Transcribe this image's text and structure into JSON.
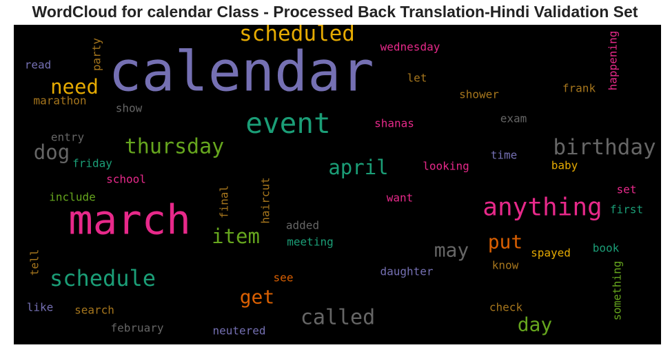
{
  "title": "WordCloud for calendar Class - Processed Back Translation-Hindi Validation Set",
  "chart_data": {
    "type": "wordcloud",
    "title": "WordCloud for calendar Class - Processed Back Translation-Hindi Validation Set",
    "background": "#000000",
    "words": [
      {
        "text": "calendar",
        "weight": 1.0,
        "color": "#7570b3",
        "orientation": "horizontal"
      },
      {
        "text": "march",
        "weight": 0.78,
        "color": "#e7298a",
        "orientation": "horizontal"
      },
      {
        "text": "event",
        "weight": 0.55,
        "color": "#1b9e77",
        "orientation": "horizontal"
      },
      {
        "text": "anything",
        "weight": 0.48,
        "color": "#e7298a",
        "orientation": "horizontal"
      },
      {
        "text": "schedule",
        "weight": 0.42,
        "color": "#1b9e77",
        "orientation": "horizontal"
      },
      {
        "text": "scheduled",
        "weight": 0.4,
        "color": "#e6ab02",
        "orientation": "horizontal"
      },
      {
        "text": "birthday",
        "weight": 0.4,
        "color": "#666666",
        "orientation": "horizontal"
      },
      {
        "text": "called",
        "weight": 0.38,
        "color": "#666666",
        "orientation": "horizontal"
      },
      {
        "text": "thursday",
        "weight": 0.38,
        "color": "#66a61e",
        "orientation": "horizontal"
      },
      {
        "text": "april",
        "weight": 0.37,
        "color": "#1b9e77",
        "orientation": "horizontal"
      },
      {
        "text": "item",
        "weight": 0.37,
        "color": "#66a61e",
        "orientation": "horizontal"
      },
      {
        "text": "need",
        "weight": 0.37,
        "color": "#e6ab02",
        "orientation": "horizontal"
      },
      {
        "text": "dog",
        "weight": 0.37,
        "color": "#666666",
        "orientation": "horizontal"
      },
      {
        "text": "get",
        "weight": 0.36,
        "color": "#d95f02",
        "orientation": "horizontal"
      },
      {
        "text": "put",
        "weight": 0.36,
        "color": "#d95f02",
        "orientation": "horizontal"
      },
      {
        "text": "may",
        "weight": 0.36,
        "color": "#666666",
        "orientation": "horizontal"
      },
      {
        "text": "day",
        "weight": 0.36,
        "color": "#66a61e",
        "orientation": "horizontal"
      },
      {
        "text": "wednesday",
        "weight": 0.27,
        "color": "#e7298a",
        "orientation": "horizontal"
      },
      {
        "text": "happening",
        "weight": 0.27,
        "color": "#e7298a",
        "orientation": "vertical"
      },
      {
        "text": "party",
        "weight": 0.27,
        "color": "#a6761d",
        "orientation": "vertical"
      },
      {
        "text": "read",
        "weight": 0.26,
        "color": "#7570b3",
        "orientation": "horizontal"
      },
      {
        "text": "let",
        "weight": 0.26,
        "color": "#a6761d",
        "orientation": "horizontal"
      },
      {
        "text": "frank",
        "weight": 0.27,
        "color": "#a6761d",
        "orientation": "horizontal"
      },
      {
        "text": "shower",
        "weight": 0.27,
        "color": "#a6761d",
        "orientation": "horizontal"
      },
      {
        "text": "marathon",
        "weight": 0.27,
        "color": "#a6761d",
        "orientation": "horizontal"
      },
      {
        "text": "show",
        "weight": 0.26,
        "color": "#666666",
        "orientation": "horizontal"
      },
      {
        "text": "shanas",
        "weight": 0.27,
        "color": "#e7298a",
        "orientation": "horizontal"
      },
      {
        "text": "exam",
        "weight": 0.26,
        "color": "#666666",
        "orientation": "horizontal"
      },
      {
        "text": "entry",
        "weight": 0.26,
        "color": "#666666",
        "orientation": "horizontal"
      },
      {
        "text": "friday",
        "weight": 0.26,
        "color": "#1b9e77",
        "orientation": "horizontal"
      },
      {
        "text": "time",
        "weight": 0.27,
        "color": "#7570b3",
        "orientation": "horizontal"
      },
      {
        "text": "looking",
        "weight": 0.27,
        "color": "#e7298a",
        "orientation": "horizontal"
      },
      {
        "text": "baby",
        "weight": 0.27,
        "color": "#e6ab02",
        "orientation": "horizontal"
      },
      {
        "text": "school",
        "weight": 0.26,
        "color": "#e7298a",
        "orientation": "horizontal"
      },
      {
        "text": "include",
        "weight": 0.26,
        "color": "#66a61e",
        "orientation": "horizontal"
      },
      {
        "text": "final",
        "weight": 0.26,
        "color": "#a6761d",
        "orientation": "vertical"
      },
      {
        "text": "haircut",
        "weight": 0.27,
        "color": "#a6761d",
        "orientation": "vertical"
      },
      {
        "text": "want",
        "weight": 0.26,
        "color": "#e7298a",
        "orientation": "horizontal"
      },
      {
        "text": "set",
        "weight": 0.26,
        "color": "#e7298a",
        "orientation": "horizontal"
      },
      {
        "text": "first",
        "weight": 0.27,
        "color": "#1b9e77",
        "orientation": "horizontal"
      },
      {
        "text": "added",
        "weight": 0.26,
        "color": "#666666",
        "orientation": "horizontal"
      },
      {
        "text": "meeting",
        "weight": 0.26,
        "color": "#1b9e77",
        "orientation": "horizontal"
      },
      {
        "text": "tell",
        "weight": 0.26,
        "color": "#a6761d",
        "orientation": "vertical"
      },
      {
        "text": "book",
        "weight": 0.26,
        "color": "#1b9e77",
        "orientation": "horizontal"
      },
      {
        "text": "spayed",
        "weight": 0.27,
        "color": "#e6ab02",
        "orientation": "horizontal"
      },
      {
        "text": "know",
        "weight": 0.26,
        "color": "#a6761d",
        "orientation": "horizontal"
      },
      {
        "text": "something",
        "weight": 0.26,
        "color": "#66a61e",
        "orientation": "vertical"
      },
      {
        "text": "daughter",
        "weight": 0.27,
        "color": "#7570b3",
        "orientation": "horizontal"
      },
      {
        "text": "see",
        "weight": 0.26,
        "color": "#d95f02",
        "orientation": "horizontal"
      },
      {
        "text": "like",
        "weight": 0.26,
        "color": "#7570b3",
        "orientation": "horizontal"
      },
      {
        "text": "search",
        "weight": 0.26,
        "color": "#a6761d",
        "orientation": "horizontal"
      },
      {
        "text": "check",
        "weight": 0.26,
        "color": "#a6761d",
        "orientation": "horizontal"
      },
      {
        "text": "february",
        "weight": 0.27,
        "color": "#666666",
        "orientation": "horizontal"
      },
      {
        "text": "neutered",
        "weight": 0.27,
        "color": "#7570b3",
        "orientation": "horizontal"
      }
    ]
  }
}
